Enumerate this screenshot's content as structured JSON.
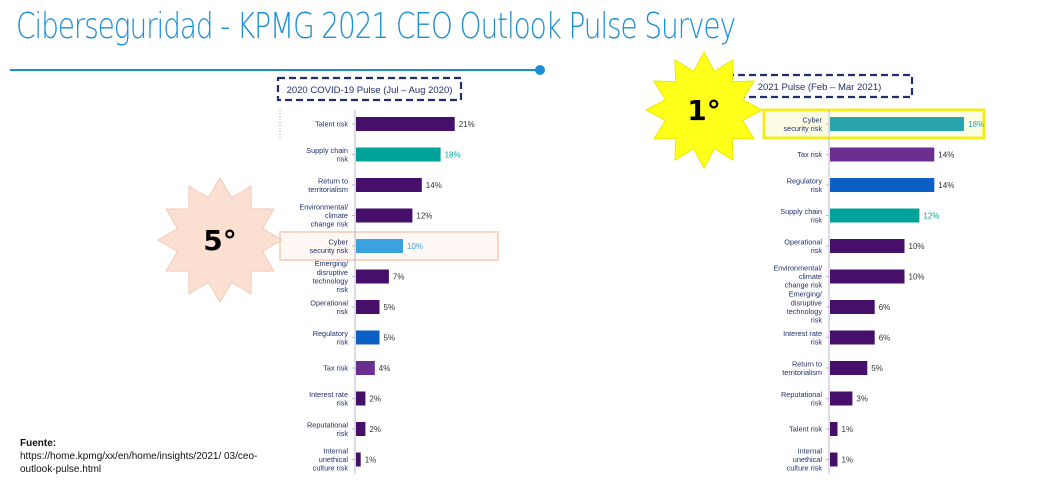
{
  "page": {
    "title": "Ciberseguridad - KPMG 2021 CEO Outlook Pulse Survey"
  },
  "badges": [
    {
      "label": "5°",
      "color": "#fbe0d2",
      "stroke": "#f1c8b4"
    },
    {
      "label": "1°",
      "color": "#ffff1a",
      "stroke": "#e8e800"
    }
  ],
  "source": {
    "heading": "Fuente:",
    "text": "https://home.kpmg/xx/en/home/insights/2021/ 03/ceo-outlook-pulse.html"
  },
  "colors": {
    "purple": "#46106a",
    "teal": "#00a39a",
    "blue": "#0c5fc5",
    "violet": "#6c2d91",
    "lightblue": "#3aa2dc",
    "cyan": "#2aa5ad",
    "highlight_left": "#f7d6c4",
    "highlight_right": "#f2ee1c",
    "label": "#1f2f6d"
  },
  "chart_data": [
    {
      "type": "bar",
      "orientation": "horizontal",
      "title": "2020 COVID-19 Pulse (Jul – Aug 2020)",
      "unit": "%",
      "xlim": [
        0,
        21
      ],
      "highlight_category": "Cyber security risk",
      "categories": [
        "Talent risk",
        "Supply chain risk",
        "Return to territorialism",
        "Environmental/ climate change risk",
        "Cyber security risk",
        "Emerging/ disruptive technology risk",
        "Operational risk",
        "Regulatory risk",
        "Tax risk",
        "Interest rate risk",
        "Reputational risk",
        "Internal unethical culture risk"
      ],
      "values": [
        21,
        18,
        14,
        12,
        10,
        7,
        5,
        5,
        4,
        2,
        2,
        1
      ],
      "labels": [
        "21%",
        "18%",
        "14%",
        "12%",
        "10%",
        "7%",
        "5%",
        "5%",
        "4%",
        "2%",
        "2%",
        "1%"
      ],
      "colors": [
        "purple",
        "teal",
        "purple",
        "purple",
        "lightblue",
        "purple",
        "purple",
        "blue",
        "violet",
        "purple",
        "purple",
        "purple"
      ]
    },
    {
      "type": "bar",
      "orientation": "horizontal",
      "title": "2021 Pulse (Feb – Mar 2021)",
      "unit": "%",
      "xlim": [
        0,
        18
      ],
      "highlight_category": "Cyber security risk",
      "categories": [
        "Cyber security risk",
        "Tax risk",
        "Regulatory risk",
        "Supply chain risk",
        "Operational risk",
        "Environmental/ climate change risk",
        "Emerging/ disruptive technology risk",
        "Interest rate risk",
        "Return to territorialism",
        "Reputational risk",
        "Talent risk",
        "Internal unethical culture risk"
      ],
      "values": [
        18,
        14,
        14,
        12,
        10,
        10,
        6,
        6,
        5,
        3,
        1,
        1
      ],
      "labels": [
        "18%",
        "14%",
        "14%",
        "12%",
        "10%",
        "10%",
        "6%",
        "6%",
        "5%",
        "3%",
        "1%",
        "1%"
      ],
      "colors": [
        "cyan",
        "violet",
        "blue",
        "teal",
        "purple",
        "purple",
        "purple",
        "purple",
        "purple",
        "purple",
        "purple",
        "purple"
      ]
    }
  ]
}
